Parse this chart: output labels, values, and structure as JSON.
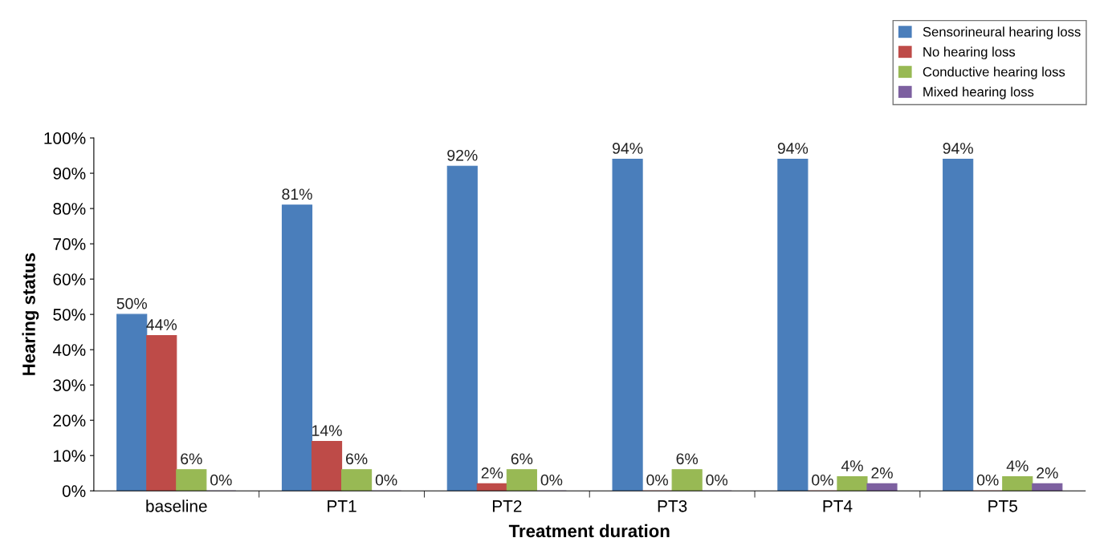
{
  "chart_data": {
    "type": "bar",
    "xlabel": "Treatment duration",
    "ylabel": "Hearing status",
    "categories": [
      "baseline",
      "PT1",
      "PT2",
      "PT3",
      "PT4",
      "PT5"
    ],
    "series": [
      {
        "name": "Sensorineural hearing loss",
        "color": "#4a7ebb",
        "values": [
          50,
          81,
          92,
          94,
          94,
          94
        ],
        "value_labels": [
          "50%",
          "81%",
          "92%",
          "94%",
          "94%",
          "94%"
        ]
      },
      {
        "name": "No hearing loss",
        "color": "#be4b48",
        "values": [
          44,
          14,
          2,
          0,
          0,
          0
        ],
        "value_labels": [
          "44%",
          "14%",
          "2%",
          "0%",
          "0%",
          "0%"
        ]
      },
      {
        "name": "Conductive hearing loss",
        "color": "#98b954",
        "values": [
          6,
          6,
          6,
          6,
          4,
          4
        ],
        "value_labels": [
          "6%",
          "6%",
          "6%",
          "6%",
          "4%",
          "4%"
        ]
      },
      {
        "name": "Mixed hearing loss",
        "color": "#7d60a0",
        "values": [
          0,
          0,
          0,
          0,
          2,
          2
        ],
        "value_labels": [
          "0%",
          "0%",
          "0%",
          "0%",
          "2%",
          "2%"
        ]
      }
    ],
    "ylim": [
      0,
      100
    ],
    "yticks": [
      {
        "value": 0,
        "label": "0%"
      },
      {
        "value": 10,
        "label": "10%"
      },
      {
        "value": 20,
        "label": "20%"
      },
      {
        "value": 30,
        "label": "30%"
      },
      {
        "value": 40,
        "label": "40%"
      },
      {
        "value": 50,
        "label": "50%"
      },
      {
        "value": 60,
        "label": "60%"
      },
      {
        "value": 70,
        "label": "70%"
      },
      {
        "value": 80,
        "label": "80%"
      },
      {
        "value": 90,
        "label": "90%"
      },
      {
        "value": 100,
        "label": "100%"
      }
    ],
    "grid": false,
    "legend": "top right"
  }
}
